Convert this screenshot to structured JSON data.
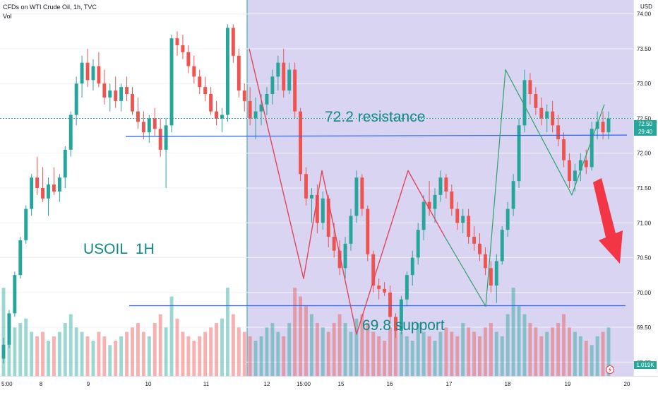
{
  "header": {
    "title": "CFDs on WTI Crude Oil, 1h, TVC",
    "volume_label": "Vol"
  },
  "price_axis": {
    "currency": "USD",
    "current_price": "72.50",
    "countdown": "29:40",
    "volume_value": "1.019K"
  },
  "annotations": {
    "symbol_label": "USOIL  1H",
    "resistance_label": "72.2 resistance",
    "support_label": "69.8 support"
  },
  "colors": {
    "up": "#26a69a",
    "down": "#ef5350",
    "line_blue": "#2962ff",
    "highlight": "#d4cff0",
    "projection_arrow": "#f23645",
    "annotation_text": "#0f8a87"
  },
  "chart_data": {
    "type": "candlestick",
    "title": "CFDs on WTI Crude Oil, 1h, TVC",
    "y_axis": {
      "range": [
        68.8,
        74.2
      ],
      "ticks": [
        "74.00",
        "73.50",
        "73.00",
        "72.50",
        "72.00",
        "71.50",
        "71.00",
        "70.50",
        "70.00",
        "69.50",
        "69.00"
      ]
    },
    "x_axis": {
      "ticks": [
        "5:00",
        "8",
        "9",
        "10",
        "11",
        "12",
        "15:00",
        "15",
        "16",
        "17",
        "18",
        "19",
        "20"
      ]
    },
    "levels": [
      {
        "label": "72.2 resistance",
        "price": 72.25
      },
      {
        "label": "69.8 support",
        "price": 69.81
      }
    ],
    "zigzag_down_phase": [
      73.5,
      70.2,
      71.75,
      69.4,
      71.75,
      70.8,
      69.8,
      73.2,
      71.4,
      72.7
    ],
    "candles": [
      {
        "o": 69.05,
        "h": 69.35,
        "l": 68.98,
        "c": 69.25
      },
      {
        "o": 69.25,
        "h": 69.75,
        "l": 69.2,
        "c": 69.7
      },
      {
        "o": 69.7,
        "h": 70.3,
        "l": 69.65,
        "c": 70.25
      },
      {
        "o": 70.25,
        "h": 70.8,
        "l": 70.2,
        "c": 70.75
      },
      {
        "o": 70.75,
        "h": 71.25,
        "l": 70.7,
        "c": 71.2
      },
      {
        "o": 71.2,
        "h": 71.7,
        "l": 71.1,
        "c": 71.65
      },
      {
        "o": 71.65,
        "h": 71.95,
        "l": 71.4,
        "c": 71.5
      },
      {
        "o": 71.5,
        "h": 71.8,
        "l": 71.3,
        "c": 71.35
      },
      {
        "o": 71.35,
        "h": 71.65,
        "l": 71.1,
        "c": 71.55
      },
      {
        "o": 71.55,
        "h": 71.8,
        "l": 71.4,
        "c": 71.45
      },
      {
        "o": 71.45,
        "h": 71.7,
        "l": 71.3,
        "c": 71.65
      },
      {
        "o": 71.65,
        "h": 72.1,
        "l": 71.5,
        "c": 72.05
      },
      {
        "o": 72.05,
        "h": 72.6,
        "l": 71.95,
        "c": 72.55
      },
      {
        "o": 72.55,
        "h": 73.1,
        "l": 72.4,
        "c": 73.0
      },
      {
        "o": 73.0,
        "h": 73.4,
        "l": 72.8,
        "c": 73.3
      },
      {
        "o": 73.3,
        "h": 73.5,
        "l": 72.95,
        "c": 73.05
      },
      {
        "o": 73.05,
        "h": 73.35,
        "l": 72.9,
        "c": 73.25
      },
      {
        "o": 73.25,
        "h": 73.45,
        "l": 72.95,
        "c": 73.0
      },
      {
        "o": 73.0,
        "h": 73.2,
        "l": 72.7,
        "c": 72.8
      },
      {
        "o": 72.8,
        "h": 73.0,
        "l": 72.6,
        "c": 72.9
      },
      {
        "o": 72.9,
        "h": 73.1,
        "l": 72.65,
        "c": 72.75
      },
      {
        "o": 72.75,
        "h": 73.0,
        "l": 72.6,
        "c": 72.95
      },
      {
        "o": 72.95,
        "h": 73.1,
        "l": 72.75,
        "c": 72.85
      },
      {
        "o": 72.85,
        "h": 72.95,
        "l": 72.55,
        "c": 72.6
      },
      {
        "o": 72.6,
        "h": 72.8,
        "l": 72.35,
        "c": 72.45
      },
      {
        "o": 72.45,
        "h": 72.6,
        "l": 72.2,
        "c": 72.3
      },
      {
        "o": 72.3,
        "h": 72.55,
        "l": 72.15,
        "c": 72.5
      },
      {
        "o": 72.5,
        "h": 72.65,
        "l": 72.25,
        "c": 72.35
      },
      {
        "o": 72.35,
        "h": 72.5,
        "l": 71.95,
        "c": 72.05
      },
      {
        "o": 72.05,
        "h": 72.5,
        "l": 71.5,
        "c": 72.4
      },
      {
        "o": 72.4,
        "h": 73.7,
        "l": 72.3,
        "c": 73.65
      },
      {
        "o": 73.65,
        "h": 73.75,
        "l": 73.4,
        "c": 73.55
      },
      {
        "o": 73.55,
        "h": 73.7,
        "l": 73.35,
        "c": 73.45
      },
      {
        "o": 73.45,
        "h": 73.55,
        "l": 73.15,
        "c": 73.25
      },
      {
        "o": 73.25,
        "h": 73.4,
        "l": 73.0,
        "c": 73.1
      },
      {
        "o": 73.1,
        "h": 73.2,
        "l": 72.85,
        "c": 72.95
      },
      {
        "o": 72.95,
        "h": 73.1,
        "l": 72.75,
        "c": 72.85
      },
      {
        "o": 72.85,
        "h": 72.95,
        "l": 72.55,
        "c": 72.6
      },
      {
        "o": 72.6,
        "h": 72.75,
        "l": 72.4,
        "c": 72.5
      },
      {
        "o": 72.5,
        "h": 72.65,
        "l": 72.3,
        "c": 72.55
      },
      {
        "o": 72.55,
        "h": 73.85,
        "l": 72.45,
        "c": 73.8
      },
      {
        "o": 73.8,
        "h": 73.85,
        "l": 73.3,
        "c": 73.4
      },
      {
        "o": 73.4,
        "h": 73.5,
        "l": 72.8,
        "c": 72.9
      },
      {
        "o": 72.9,
        "h": 73.0,
        "l": 72.6,
        "c": 72.75
      },
      {
        "o": 72.75,
        "h": 72.95,
        "l": 72.4,
        "c": 72.5
      },
      {
        "o": 72.5,
        "h": 72.8,
        "l": 72.2,
        "c": 72.6
      },
      {
        "o": 72.6,
        "h": 72.85,
        "l": 72.4,
        "c": 72.7
      },
      {
        "o": 72.7,
        "h": 72.95,
        "l": 72.55,
        "c": 72.85
      },
      {
        "o": 72.85,
        "h": 73.2,
        "l": 72.7,
        "c": 73.1
      },
      {
        "o": 73.1,
        "h": 73.4,
        "l": 72.9,
        "c": 73.3
      },
      {
        "o": 73.3,
        "h": 73.5,
        "l": 72.8,
        "c": 72.9
      },
      {
        "o": 72.9,
        "h": 73.3,
        "l": 72.85,
        "c": 73.2
      },
      {
        "o": 73.2,
        "h": 73.3,
        "l": 72.5,
        "c": 72.6
      },
      {
        "o": 72.6,
        "h": 72.65,
        "l": 71.6,
        "c": 71.7
      },
      {
        "o": 71.7,
        "h": 71.8,
        "l": 71.25,
        "c": 71.35
      },
      {
        "o": 71.35,
        "h": 71.5,
        "l": 71.0,
        "c": 71.4
      },
      {
        "o": 71.4,
        "h": 71.55,
        "l": 70.85,
        "c": 71.0
      },
      {
        "o": 71.0,
        "h": 71.45,
        "l": 70.9,
        "c": 71.35
      },
      {
        "o": 71.35,
        "h": 71.4,
        "l": 70.65,
        "c": 70.8
      },
      {
        "o": 70.8,
        "h": 71.0,
        "l": 70.5,
        "c": 70.6
      },
      {
        "o": 70.6,
        "h": 70.75,
        "l": 70.25,
        "c": 70.35
      },
      {
        "o": 70.35,
        "h": 70.8,
        "l": 70.2,
        "c": 70.7
      },
      {
        "o": 70.7,
        "h": 71.2,
        "l": 70.6,
        "c": 71.1
      },
      {
        "o": 71.1,
        "h": 71.75,
        "l": 71.0,
        "c": 71.65
      },
      {
        "o": 71.65,
        "h": 71.7,
        "l": 71.1,
        "c": 71.2
      },
      {
        "o": 71.2,
        "h": 71.25,
        "l": 70.45,
        "c": 70.55
      },
      {
        "o": 70.55,
        "h": 70.6,
        "l": 70.0,
        "c": 70.1
      },
      {
        "o": 70.1,
        "h": 70.2,
        "l": 69.9,
        "c": 70.05
      },
      {
        "o": 70.05,
        "h": 70.15,
        "l": 69.95,
        "c": 70.0
      },
      {
        "o": 70.0,
        "h": 70.1,
        "l": 69.55,
        "c": 69.65
      },
      {
        "o": 69.65,
        "h": 69.7,
        "l": 69.35,
        "c": 69.45
      },
      {
        "o": 69.45,
        "h": 69.95,
        "l": 69.4,
        "c": 69.9
      },
      {
        "o": 69.9,
        "h": 70.3,
        "l": 69.8,
        "c": 70.25
      },
      {
        "o": 70.25,
        "h": 70.6,
        "l": 70.1,
        "c": 70.5
      },
      {
        "o": 70.5,
        "h": 71.0,
        "l": 70.4,
        "c": 70.9
      },
      {
        "o": 70.9,
        "h": 71.4,
        "l": 70.75,
        "c": 71.3
      },
      {
        "o": 71.3,
        "h": 71.6,
        "l": 71.1,
        "c": 71.2
      },
      {
        "o": 71.2,
        "h": 71.5,
        "l": 71.0,
        "c": 71.4
      },
      {
        "o": 71.4,
        "h": 71.75,
        "l": 71.3,
        "c": 71.65
      },
      {
        "o": 71.65,
        "h": 71.7,
        "l": 71.35,
        "c": 71.45
      },
      {
        "o": 71.45,
        "h": 71.55,
        "l": 71.1,
        "c": 71.2
      },
      {
        "o": 71.2,
        "h": 71.3,
        "l": 70.9,
        "c": 71.0
      },
      {
        "o": 71.0,
        "h": 71.2,
        "l": 70.85,
        "c": 71.1
      },
      {
        "o": 71.1,
        "h": 71.2,
        "l": 70.7,
        "c": 70.8
      },
      {
        "o": 70.8,
        "h": 70.95,
        "l": 70.6,
        "c": 70.7
      },
      {
        "o": 70.7,
        "h": 70.85,
        "l": 70.45,
        "c": 70.55
      },
      {
        "o": 70.55,
        "h": 70.65,
        "l": 70.25,
        "c": 70.35
      },
      {
        "o": 70.35,
        "h": 70.45,
        "l": 70.0,
        "c": 70.1
      },
      {
        "o": 70.1,
        "h": 70.55,
        "l": 69.85,
        "c": 70.45
      },
      {
        "o": 70.45,
        "h": 70.95,
        "l": 70.4,
        "c": 70.9
      },
      {
        "o": 70.9,
        "h": 71.3,
        "l": 70.8,
        "c": 71.2
      },
      {
        "o": 71.2,
        "h": 71.7,
        "l": 71.1,
        "c": 71.6
      },
      {
        "o": 71.6,
        "h": 72.5,
        "l": 71.5,
        "c": 72.4
      },
      {
        "o": 72.4,
        "h": 73.2,
        "l": 72.3,
        "c": 73.05
      },
      {
        "o": 73.05,
        "h": 73.15,
        "l": 72.7,
        "c": 72.85
      },
      {
        "o": 72.85,
        "h": 72.95,
        "l": 72.55,
        "c": 72.65
      },
      {
        "o": 72.65,
        "h": 72.8,
        "l": 72.4,
        "c": 72.5
      },
      {
        "o": 72.5,
        "h": 72.7,
        "l": 72.3,
        "c": 72.6
      },
      {
        "o": 72.6,
        "h": 72.75,
        "l": 72.3,
        "c": 72.4
      },
      {
        "o": 72.4,
        "h": 72.55,
        "l": 72.1,
        "c": 72.2
      },
      {
        "o": 72.2,
        "h": 72.3,
        "l": 71.8,
        "c": 71.9
      },
      {
        "o": 71.9,
        "h": 72.0,
        "l": 71.5,
        "c": 71.6
      },
      {
        "o": 71.6,
        "h": 71.85,
        "l": 71.45,
        "c": 71.75
      },
      {
        "o": 71.75,
        "h": 72.0,
        "l": 71.6,
        "c": 71.9
      },
      {
        "o": 71.9,
        "h": 72.05,
        "l": 71.7,
        "c": 71.8
      },
      {
        "o": 71.8,
        "h": 72.45,
        "l": 71.75,
        "c": 72.35
      },
      {
        "o": 72.35,
        "h": 72.6,
        "l": 72.2,
        "c": 72.45
      },
      {
        "o": 72.45,
        "h": 72.6,
        "l": 72.2,
        "c": 72.3
      },
      {
        "o": 72.3,
        "h": 72.6,
        "l": 72.2,
        "c": 72.5
      }
    ],
    "volumes": [
      1.0,
      0.7,
      0.55,
      0.6,
      0.65,
      0.5,
      0.45,
      0.5,
      0.4,
      0.45,
      0.5,
      0.6,
      0.7,
      0.55,
      0.5,
      0.45,
      0.4,
      0.5,
      0.45,
      0.35,
      0.4,
      0.45,
      0.5,
      0.55,
      0.6,
      0.5,
      0.45,
      0.6,
      0.7,
      0.55,
      0.9,
      0.65,
      0.5,
      0.45,
      0.4,
      0.45,
      0.5,
      0.55,
      0.6,
      0.65,
      1.0,
      0.7,
      0.55,
      0.5,
      0.45,
      0.4,
      0.45,
      0.55,
      0.6,
      0.5,
      0.45,
      0.6,
      1.0,
      0.9,
      0.8,
      0.7,
      0.6,
      0.55,
      0.5,
      0.6,
      0.7,
      0.6,
      0.5,
      0.65,
      0.7,
      0.6,
      0.5,
      0.45,
      0.4,
      0.55,
      0.6,
      0.5,
      0.45,
      0.4,
      0.6,
      0.5,
      0.45,
      0.4,
      0.5,
      0.55,
      0.5,
      0.45,
      0.6,
      0.55,
      0.5,
      0.45,
      0.55,
      0.6,
      0.5,
      0.45,
      0.7,
      1.0,
      0.8,
      0.7,
      0.6,
      0.55,
      0.45,
      0.5,
      0.55,
      0.6,
      0.7,
      0.55,
      0.5,
      0.45,
      0.4,
      0.35,
      0.45,
      0.5,
      0.55
    ]
  }
}
